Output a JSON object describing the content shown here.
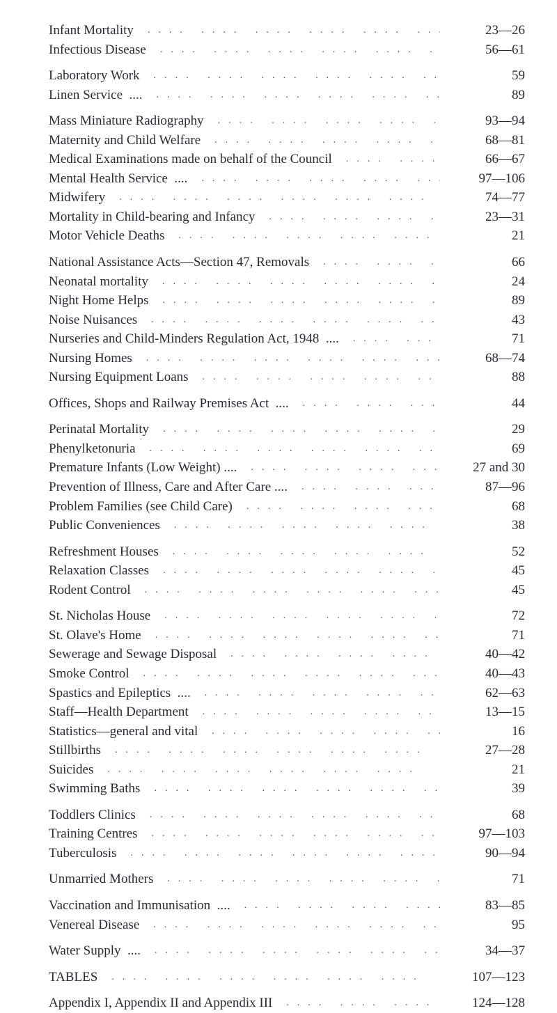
{
  "font_color": "#2a2a35",
  "background_color": "#ffffff",
  "base_fontsize": 19,
  "line_height": 1.45,
  "groups": [
    {
      "entries": [
        {
          "label": "Infant Mortality",
          "page": "23—26"
        },
        {
          "label": "Infectious Disease",
          "page": "56—61"
        }
      ]
    },
    {
      "entries": [
        {
          "label": "Laboratory Work",
          "page": "59"
        },
        {
          "label": "Linen Service  ....",
          "page": "89"
        }
      ]
    },
    {
      "entries": [
        {
          "label": "Mass Miniature Radiography",
          "page": "93—94"
        },
        {
          "label": "Maternity and Child Welfare",
          "page": "68—81"
        },
        {
          "label": "Medical Examinations made on behalf of the Council",
          "page": "66—67"
        },
        {
          "label": "Mental Health Service  ....",
          "page": "97—106"
        },
        {
          "label": "Midwifery",
          "page": "74—77"
        },
        {
          "label": "Mortality in Child-bearing and Infancy",
          "page": "23—31"
        },
        {
          "label": "Motor Vehicle Deaths",
          "page": "21"
        }
      ]
    },
    {
      "entries": [
        {
          "label": "National Assistance Acts—Section 47, Removals",
          "page": "66"
        },
        {
          "label": "Neonatal mortality",
          "page": "24"
        },
        {
          "label": "Night Home Helps",
          "page": "89"
        },
        {
          "label": "Noise Nuisances",
          "page": "43"
        },
        {
          "label": "Nurseries and Child-Minders Regulation Act, 1948  ....",
          "page": "71"
        },
        {
          "label": "Nursing Homes",
          "page": "68—74"
        },
        {
          "label": "Nursing Equipment Loans",
          "page": "88"
        }
      ]
    },
    {
      "entries": [
        {
          "label": "Offices, Shops and Railway Premises Act  ....",
          "page": "44"
        }
      ]
    },
    {
      "entries": [
        {
          "label": "Perinatal Mortality",
          "page": "29"
        },
        {
          "label": "Phenylketonuria",
          "page": "69"
        },
        {
          "label": "Premature Infants (Low Weight) ....",
          "page": "27 and 30"
        },
        {
          "label": "Prevention of Illness, Care and After Care ....",
          "page": "87—96"
        },
        {
          "label": "Problem Families (see Child Care)",
          "page": "68"
        },
        {
          "label": "Public Conveniences",
          "page": "38"
        }
      ]
    },
    {
      "entries": [
        {
          "label": "Refreshment Houses",
          "page": "52"
        },
        {
          "label": "Relaxation Classes",
          "page": "45"
        },
        {
          "label": "Rodent Control",
          "page": "45"
        }
      ]
    },
    {
      "entries": [
        {
          "label": "St. Nicholas House",
          "page": "72"
        },
        {
          "label": "St. Olave's Home",
          "page": "71"
        },
        {
          "label": "Sewerage and Sewage Disposal",
          "page": "40—42"
        },
        {
          "label": "Smoke Control",
          "page": "40—43"
        },
        {
          "label": "Spastics and Epileptics  ....",
          "page": "62—63"
        },
        {
          "label": "Staff—Health Department",
          "page": "13—15"
        },
        {
          "label": "Statistics—general and vital",
          "page": "16"
        },
        {
          "label": "Stillbirths",
          "page": "27—28"
        },
        {
          "label": "Suicides",
          "page": "21"
        },
        {
          "label": "Swimming Baths",
          "page": "39"
        }
      ]
    },
    {
      "entries": [
        {
          "label": "Toddlers Clinics",
          "page": "68"
        },
        {
          "label": "Training Centres",
          "page": "97—103"
        },
        {
          "label": "Tuberculosis",
          "page": "90—94"
        }
      ]
    },
    {
      "entries": [
        {
          "label": "Unmarried Mothers",
          "page": "71"
        }
      ]
    },
    {
      "entries": [
        {
          "label": "Vaccination and Immunisation  ....",
          "page": "83—85"
        },
        {
          "label": "Venereal Disease",
          "page": "95"
        }
      ]
    },
    {
      "entries": [
        {
          "label": "Water Supply  ....",
          "page": "34—37"
        }
      ]
    },
    {
      "entries": [
        {
          "label": "TABLES",
          "page": "107—123"
        }
      ]
    },
    {
      "entries": [
        {
          "label": "Appendix I, Appendix II and Appendix III",
          "page": "124—128"
        }
      ]
    }
  ]
}
